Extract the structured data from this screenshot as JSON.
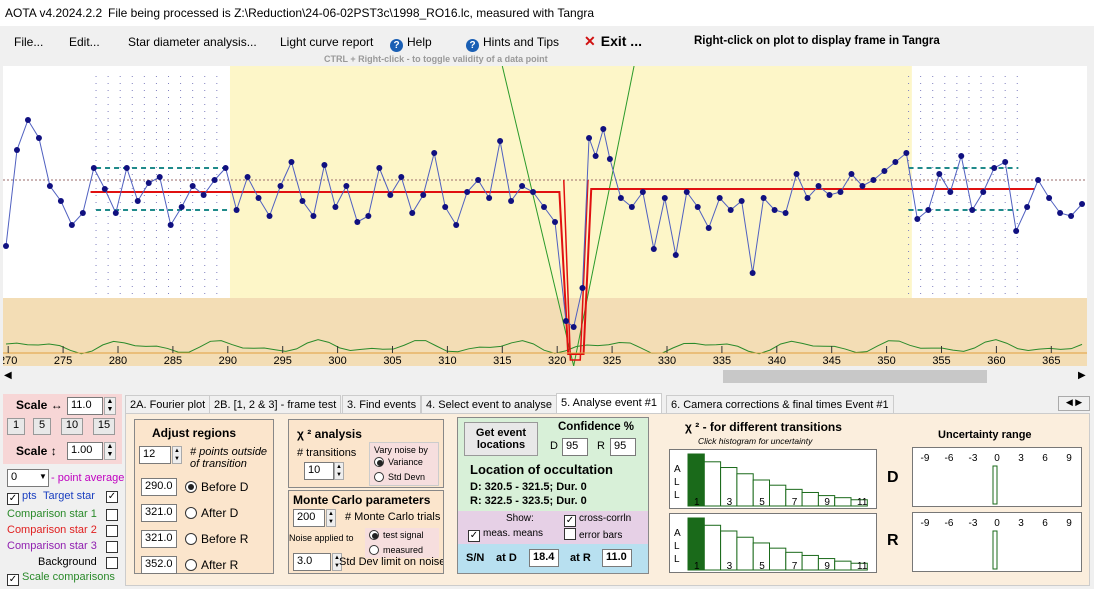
{
  "title": {
    "app": "AOTA v4.2024.2.2",
    "file": "File being processed is Z:\\Reduction\\24-06-02PST3c\\1998_RO16.lc, measured with Tangra"
  },
  "menu": {
    "file": "File...",
    "edit": "Edit...",
    "star_diameter": "Star diameter analysis...",
    "light_curve": "Light curve report",
    "help": "Help",
    "hints": "Hints and Tips",
    "exit": "Exit ...",
    "right_click": "Right-click on plot to display frame in Tangra",
    "ctrl_hint": "CTRL + Right-click  -  to toggle validity of a data point"
  },
  "chart_data": {
    "type": "line",
    "x_ticks": [
      "270",
      "275",
      "280",
      "285",
      "290",
      "295",
      "300",
      "305",
      "310",
      "315",
      "320",
      "325",
      "330",
      "335",
      "340",
      "345",
      "350",
      "355",
      "360",
      "365"
    ],
    "series": [
      {
        "values": [
          [
            269.8,
            0.4
          ],
          [
            270.8,
            0.72
          ],
          [
            271.8,
            0.82
          ],
          [
            272.8,
            0.76
          ],
          [
            273.8,
            0.6
          ],
          [
            274.8,
            0.55
          ],
          [
            275.8,
            0.47
          ],
          [
            276.8,
            0.51
          ],
          [
            277.8,
            0.66
          ],
          [
            278.8,
            0.59
          ],
          [
            279.8,
            0.51
          ],
          [
            280.8,
            0.66
          ],
          [
            281.8,
            0.55
          ],
          [
            282.8,
            0.61
          ],
          [
            283.8,
            0.63
          ],
          [
            284.8,
            0.47
          ],
          [
            285.8,
            0.53
          ],
          [
            286.8,
            0.6
          ],
          [
            287.8,
            0.57
          ],
          [
            288.8,
            0.62
          ],
          [
            289.8,
            0.66
          ],
          [
            290.8,
            0.52
          ],
          [
            291.8,
            0.63
          ],
          [
            292.8,
            0.56
          ],
          [
            293.8,
            0.5
          ],
          [
            294.8,
            0.6
          ],
          [
            295.8,
            0.68
          ],
          [
            296.8,
            0.55
          ],
          [
            297.8,
            0.5
          ],
          [
            298.8,
            0.67
          ],
          [
            299.8,
            0.53
          ],
          [
            300.8,
            0.6
          ],
          [
            301.8,
            0.48
          ],
          [
            302.8,
            0.5
          ],
          [
            303.8,
            0.66
          ],
          [
            304.8,
            0.57
          ],
          [
            305.8,
            0.63
          ],
          [
            306.8,
            0.51
          ],
          [
            307.8,
            0.57
          ],
          [
            308.8,
            0.71
          ],
          [
            309.8,
            0.53
          ],
          [
            310.8,
            0.47
          ],
          [
            311.8,
            0.58
          ],
          [
            312.8,
            0.62
          ],
          [
            313.8,
            0.56
          ],
          [
            314.8,
            0.75
          ],
          [
            315.8,
            0.55
          ],
          [
            316.8,
            0.6
          ],
          [
            317.8,
            0.58
          ],
          [
            318.8,
            0.53
          ],
          [
            319.8,
            0.48
          ],
          [
            320.8,
            0.15
          ],
          [
            321.5,
            0.13
          ],
          [
            322.3,
            0.26
          ],
          [
            322.9,
            0.76
          ],
          [
            323.5,
            0.7
          ],
          [
            324.2,
            0.79
          ],
          [
            324.8,
            0.69
          ],
          [
            325.8,
            0.56
          ],
          [
            326.8,
            0.53
          ],
          [
            327.8,
            0.58
          ],
          [
            328.8,
            0.39
          ],
          [
            329.8,
            0.56
          ],
          [
            330.8,
            0.37
          ],
          [
            331.8,
            0.58
          ],
          [
            332.8,
            0.53
          ],
          [
            333.8,
            0.46
          ],
          [
            334.8,
            0.56
          ],
          [
            335.8,
            0.52
          ],
          [
            336.8,
            0.55
          ],
          [
            337.8,
            0.31
          ],
          [
            338.8,
            0.56
          ],
          [
            339.8,
            0.52
          ],
          [
            340.8,
            0.51
          ],
          [
            341.8,
            0.64
          ],
          [
            342.8,
            0.56
          ],
          [
            343.8,
            0.6
          ],
          [
            344.8,
            0.57
          ],
          [
            345.8,
            0.58
          ],
          [
            346.8,
            0.64
          ],
          [
            347.8,
            0.6
          ],
          [
            348.8,
            0.62
          ],
          [
            349.8,
            0.65
          ],
          [
            350.8,
            0.68
          ],
          [
            351.8,
            0.71
          ],
          [
            352.8,
            0.49
          ],
          [
            353.8,
            0.52
          ],
          [
            354.8,
            0.64
          ],
          [
            355.8,
            0.58
          ],
          [
            356.8,
            0.7
          ],
          [
            357.8,
            0.52
          ],
          [
            358.8,
            0.58
          ],
          [
            359.8,
            0.66
          ],
          [
            360.8,
            0.68
          ],
          [
            361.8,
            0.45
          ],
          [
            362.8,
            0.53
          ],
          [
            363.8,
            0.62
          ],
          [
            364.8,
            0.56
          ],
          [
            365.8,
            0.51
          ],
          [
            366.8,
            0.5
          ],
          [
            367.8,
            0.54
          ]
        ]
      }
    ]
  },
  "left_panel": {
    "scale_h_label": "Scale ↔",
    "scale_h_value": "11.0",
    "steps": [
      "1",
      "5",
      "10",
      "15"
    ],
    "scale_v_label": "Scale ↕",
    "scale_v_value": "1.00",
    "point_avg_value": "0",
    "point_avg_label": "- point average",
    "pts_label": "pts",
    "target_label": "Target star",
    "comp1": "Comparison star 1",
    "comp2": "Comparison star 2",
    "comp3": "Comparison star 3",
    "background": "Background",
    "scale_comparisons": "Scale comparisons",
    "colors": {
      "comp1": "#2a8a2a",
      "comp2": "#e02020",
      "comp3": "#9020b0",
      "target": "#1a3fc0"
    }
  },
  "tabs": [
    "2A. Fourier plot",
    "2B. [1, 2 & 3] - frame test",
    "3. Find events",
    "4. Select event to analyse",
    "5. Analyse event #1",
    "6. Camera corrections & final times Event #1"
  ],
  "adjust": {
    "title": "Adjust regions",
    "points_value": "12",
    "points_label": "# points outside of transition",
    "before_d_value": "290.0",
    "before_d": "Before D",
    "after_d_value": "321.0",
    "after_d": "After D",
    "before_r_value": "321.0",
    "before_r": "Before R",
    "after_r_value": "352.0",
    "after_r": "After R"
  },
  "chi": {
    "title": "χ ² analysis",
    "transitions_label": "# transitions",
    "transitions_value": "10",
    "vary_label": "Vary noise by",
    "variance": "Variance",
    "std_devn": "Std Devn"
  },
  "monte": {
    "title": "Monte Carlo parameters",
    "trials_value": "200",
    "trials_label": "# Monte Carlo trials",
    "noise_applied": "Noise applied to",
    "test_signal": "test signal",
    "measured": "measured",
    "sd_value": "3.0",
    "sd_label": "Std Dev limit on noise"
  },
  "event": {
    "get_btn": "Get event locations",
    "conf_title": "Confidence %",
    "d_label": "D",
    "d_value": "95",
    "r_label": "R",
    "r_value": "95",
    "loc_title": "Location of occultation",
    "d_line": "D: 320.5 - 321.5; Dur. 0",
    "r_line": "R: 322.5 - 323.5; Dur. 0",
    "show": "Show:",
    "cross": "cross-corrln",
    "meas": "meas. means",
    "error_bars": "error bars",
    "sn": "S/N",
    "at_d": "at D",
    "sn_d": "18.4",
    "at_r": "at R",
    "sn_r": "11.0"
  },
  "hist": {
    "title": "χ ² - for different transitions",
    "subtitle": "Click histogram for uncertainty",
    "all_a": "A",
    "all_l1": "L",
    "all_l2": "L",
    "ticks": [
      "1",
      "3",
      "5",
      "7",
      "9",
      "11"
    ],
    "D": "D",
    "R": "R",
    "d_bars": [
      1.0,
      0.85,
      0.74,
      0.62,
      0.5,
      0.4,
      0.32,
      0.26,
      0.2,
      0.16,
      0.12
    ],
    "r_bars": [
      1.0,
      0.86,
      0.75,
      0.63,
      0.52,
      0.42,
      0.34,
      0.28,
      0.22,
      0.17,
      0.13
    ]
  },
  "uncertainty": {
    "title": "Uncertainty range",
    "ticks": [
      "-9",
      "-6",
      "-3",
      "0",
      "3",
      "6",
      "9"
    ]
  }
}
